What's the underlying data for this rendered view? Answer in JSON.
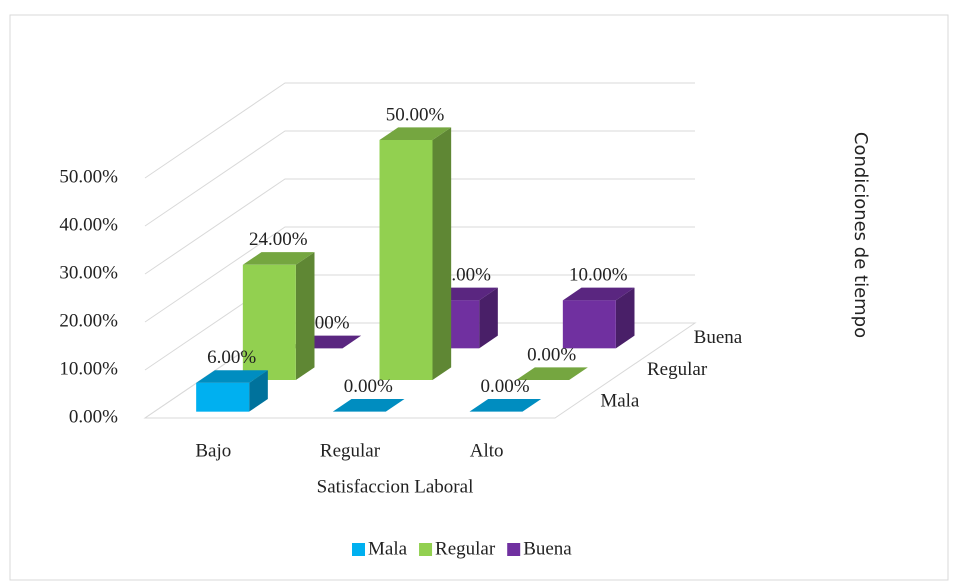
{
  "chart_data": {
    "type": "bar3d",
    "categories": [
      "Bajo",
      "Regular",
      "Alto"
    ],
    "xlabel": "Satisfaccion Laboral",
    "zlabel": "Condiciones de tiempo",
    "series": [
      {
        "name": "Mala",
        "color": "#00b0f0",
        "values": [
          6,
          0,
          0
        ],
        "value_labels": [
          "6.00%",
          "0.00%",
          "0.00%"
        ]
      },
      {
        "name": "Regular",
        "color": "#92d050",
        "values": [
          24,
          50,
          0
        ],
        "value_labels": [
          "24.00%",
          "50.00%",
          "0.00%"
        ]
      },
      {
        "name": "Buena",
        "color": "#7030a0",
        "values": [
          0,
          10,
          10
        ],
        "value_labels": [
          "0.00%",
          "10.00%",
          "10.00%"
        ]
      }
    ],
    "ylim": [
      0,
      50
    ],
    "yticks": [
      {
        "value": 0,
        "label": "0.00%"
      },
      {
        "value": 10,
        "label": "10.00%"
      },
      {
        "value": 20,
        "label": "20.00%"
      },
      {
        "value": 30,
        "label": "30.00%"
      },
      {
        "value": 40,
        "label": "40.00%"
      },
      {
        "value": 50,
        "label": "50.00%"
      }
    ],
    "grid": true,
    "legend": "bottom"
  }
}
